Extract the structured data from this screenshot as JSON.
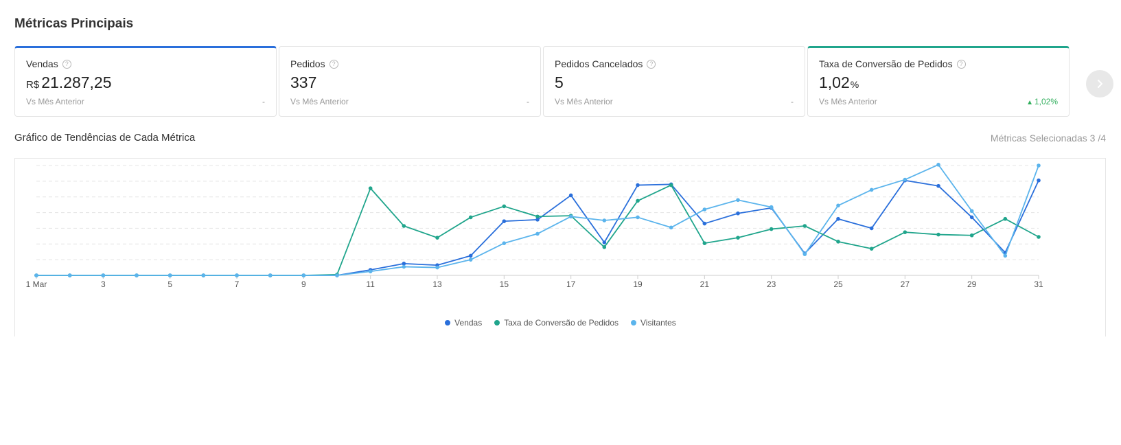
{
  "page": {
    "title": "Métricas Principais",
    "chart_title": "Gráfico de Tendências de Cada Métrica",
    "selected_metrics": "Métricas Selecionadas 3 /4"
  },
  "cards": [
    {
      "title": "Vendas",
      "currency": "R$",
      "value": "21.287,25",
      "unit": "",
      "compare": "Vs Mês Anterior",
      "delta": "-",
      "accent": "#2a6fdb"
    },
    {
      "title": "Pedidos",
      "currency": "",
      "value": "337",
      "unit": "",
      "compare": "Vs Mês Anterior",
      "delta": "-",
      "accent": ""
    },
    {
      "title": "Pedidos Cancelados",
      "currency": "",
      "value": "5",
      "unit": "",
      "compare": "Vs Mês Anterior",
      "delta": "-",
      "accent": ""
    },
    {
      "title": "Taxa de Conversão de Pedidos",
      "currency": "",
      "value": "1,02",
      "unit": "%",
      "compare": "Vs Mês Anterior",
      "delta": "1,02%",
      "delta_direction": "up",
      "accent": "#20a58c"
    }
  ],
  "icons": {
    "help": "question-circle-icon",
    "next": "chevron-right-icon",
    "delta_up": "triangle-up-icon"
  },
  "colors": {
    "vendas": "#2a6fdb",
    "taxa": "#20a58c",
    "visitantes": "#5bb4ec",
    "up": "#2fae5b"
  },
  "chart_data": {
    "type": "line",
    "x": [
      1,
      2,
      3,
      4,
      5,
      6,
      7,
      8,
      9,
      10,
      11,
      12,
      13,
      14,
      15,
      16,
      17,
      18,
      19,
      20,
      21,
      22,
      23,
      24,
      25,
      26,
      27,
      28,
      29,
      30,
      31
    ],
    "x_tick_labels": [
      "1 Mar",
      "3",
      "5",
      "7",
      "9",
      "11",
      "13",
      "15",
      "17",
      "19",
      "21",
      "23",
      "25",
      "27",
      "29",
      "31"
    ],
    "x_tick_values": [
      1,
      3,
      5,
      7,
      9,
      11,
      13,
      15,
      17,
      19,
      21,
      23,
      25,
      27,
      29,
      31
    ],
    "ylim": [
      0,
      7
    ],
    "grid": true,
    "legend_position": "bottom-center",
    "series": [
      {
        "name": "Vendas",
        "color": "#2a6fdb",
        "values": [
          0,
          0,
          0,
          0,
          0,
          0,
          0,
          0,
          0,
          0,
          0.35,
          0.75,
          0.65,
          1.25,
          3.45,
          3.55,
          5.1,
          2.1,
          5.75,
          5.8,
          3.3,
          3.95,
          4.3,
          1.4,
          3.6,
          3.0,
          6.05,
          5.7,
          3.7,
          1.45,
          6.05
        ]
      },
      {
        "name": "Taxa de Conversão de Pedidos",
        "color": "#20a58c",
        "values": [
          0,
          0,
          0,
          0,
          0,
          0,
          0,
          0,
          0,
          0.05,
          5.55,
          3.15,
          2.4,
          3.7,
          4.4,
          3.75,
          3.8,
          1.8,
          4.75,
          5.75,
          2.05,
          2.4,
          2.95,
          3.15,
          2.15,
          1.7,
          2.75,
          2.6,
          2.55,
          3.6,
          2.45
        ]
      },
      {
        "name": "Visitantes",
        "color": "#5bb4ec",
        "values": [
          0,
          0,
          0,
          0,
          0,
          0,
          0,
          0,
          0,
          0,
          0.25,
          0.55,
          0.5,
          1.0,
          2.05,
          2.65,
          3.75,
          3.5,
          3.7,
          3.05,
          4.2,
          4.8,
          4.35,
          1.35,
          4.45,
          5.45,
          6.1,
          7.05,
          4.1,
          1.25,
          7.0
        ]
      }
    ]
  }
}
